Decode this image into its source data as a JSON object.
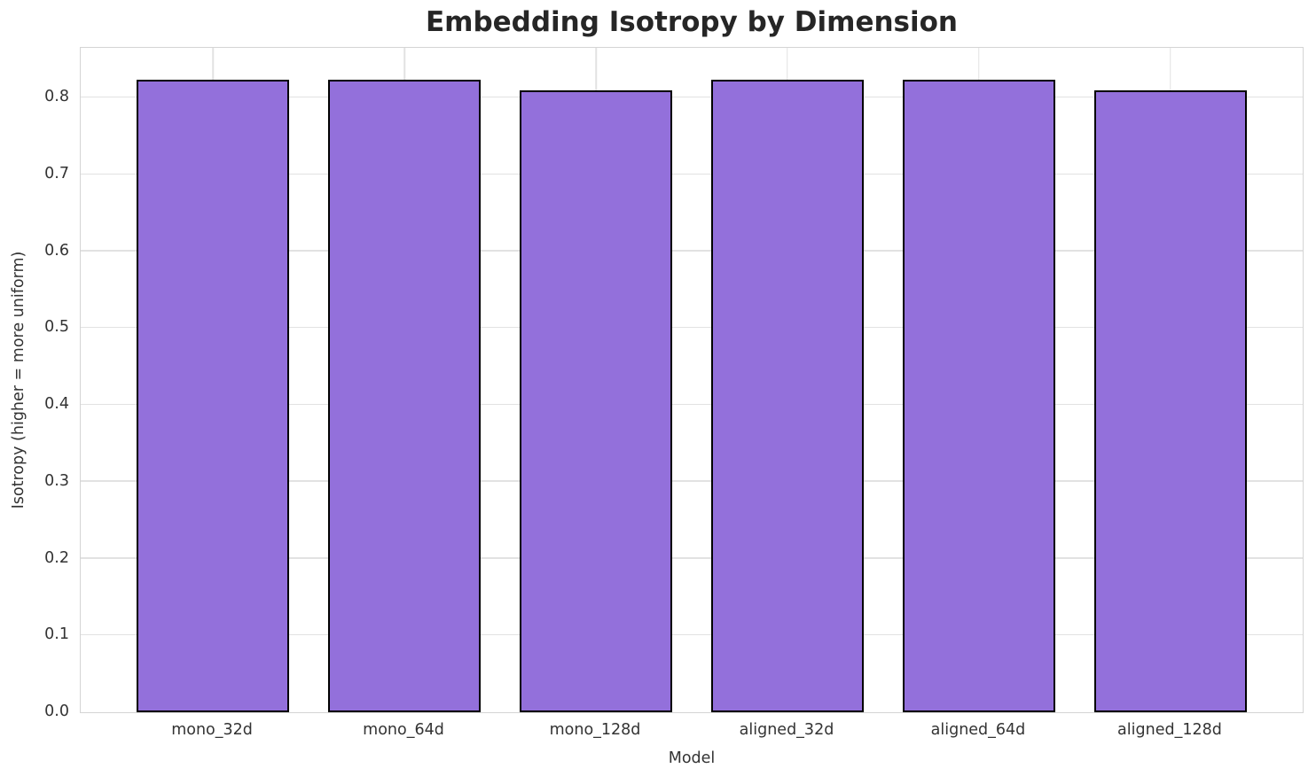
{
  "chart_data": {
    "type": "bar",
    "title": "Embedding Isotropy by Dimension",
    "xlabel": "Model",
    "ylabel": "Isotropy (higher = more uniform)",
    "categories": [
      "mono_32d",
      "mono_64d",
      "mono_128d",
      "aligned_32d",
      "aligned_64d",
      "aligned_128d"
    ],
    "values": [
      0.824,
      0.824,
      0.81,
      0.824,
      0.824,
      0.81
    ],
    "ylim": [
      0,
      0.865
    ],
    "yticks": [
      0.0,
      0.1,
      0.2,
      0.3,
      0.4,
      0.5,
      0.6,
      0.7,
      0.8
    ],
    "ytick_decimals": 1,
    "grid": true,
    "legend_position": "none",
    "colors": {
      "bar_fill": "#9370DB",
      "bar_edge": "#000000",
      "grid": "#e2e2e2",
      "spine": "#d4d4d4",
      "text": "#333333",
      "title": "#262626",
      "background": "#ffffff"
    }
  }
}
